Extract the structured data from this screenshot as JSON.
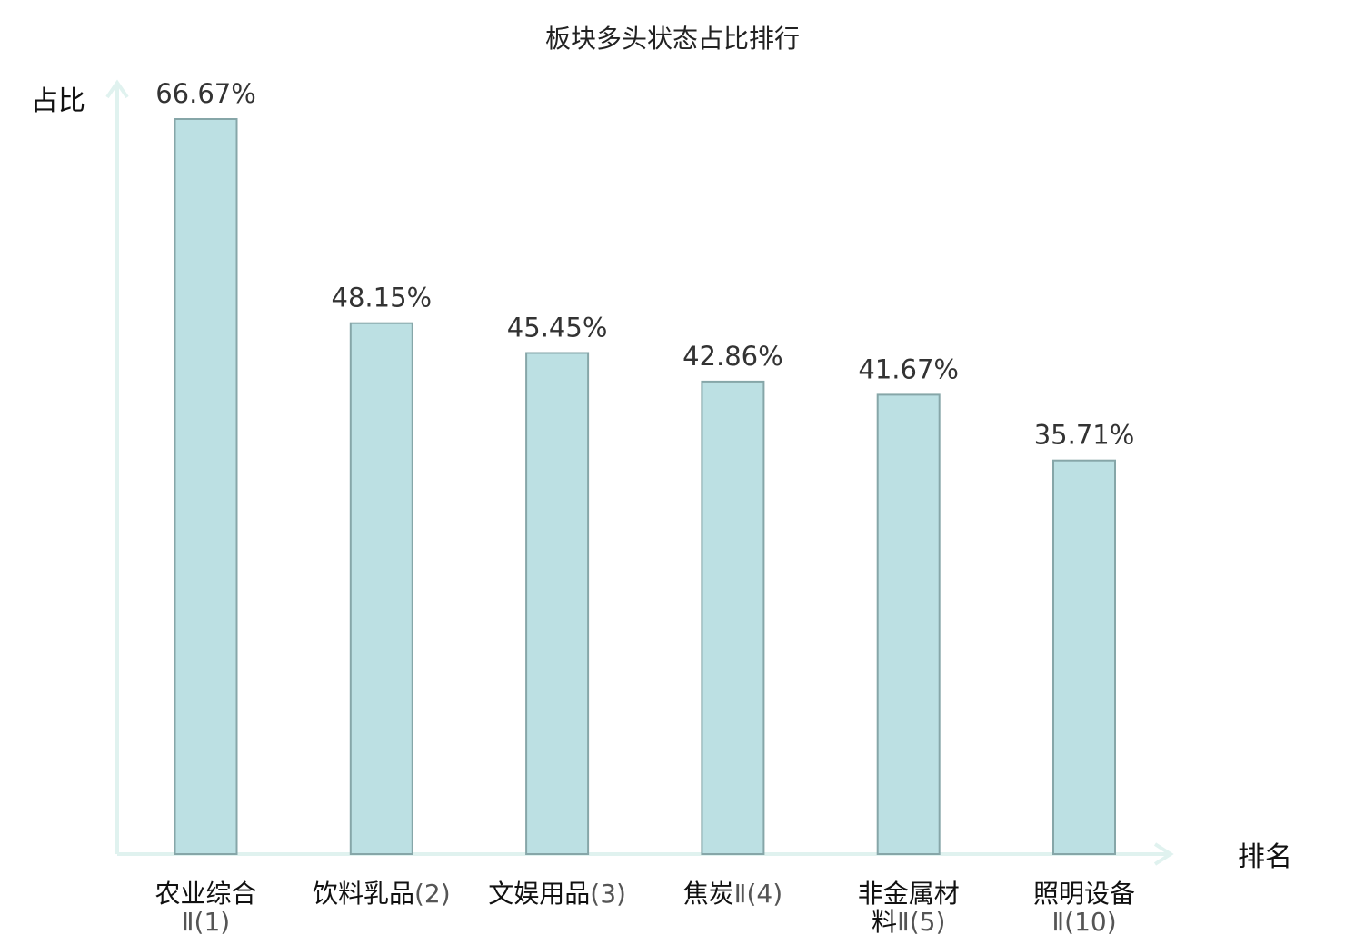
{
  "chart_data": {
    "type": "bar",
    "title": "板块多头状态占比排行",
    "ylabel": "占比",
    "xlabel": "排名",
    "categories": [
      {
        "lines": [
          {
            "main": "农业综合",
            "suffix": ""
          },
          {
            "main": "",
            "suffix": "Ⅱ(1)"
          }
        ],
        "highlight": false
      },
      {
        "lines": [
          {
            "main": "饮料乳品",
            "suffix": "(2)"
          }
        ],
        "highlight": false
      },
      {
        "lines": [
          {
            "main": "文娱用品",
            "suffix": "(3)"
          }
        ],
        "highlight": false
      },
      {
        "lines": [
          {
            "main": "焦炭",
            "suffix": "Ⅱ(4)"
          }
        ],
        "highlight": false
      },
      {
        "lines": [
          {
            "main": "非金属材",
            "suffix": ""
          },
          {
            "main": "料",
            "suffix": "Ⅱ(5)"
          }
        ],
        "highlight": false
      },
      {
        "lines": [
          {
            "main": "照明设备",
            "suffix": ""
          },
          {
            "main": "",
            "suffix": "Ⅱ(10)"
          }
        ],
        "highlight": true
      }
    ],
    "values": [
      66.67,
      48.15,
      45.45,
      42.86,
      41.67,
      35.71
    ],
    "value_labels": [
      "66.67%",
      "48.15%",
      "45.45%",
      "42.86%",
      "41.67%",
      "35.71%"
    ],
    "ylim": [
      0,
      66.67
    ],
    "grid": false,
    "colors": {
      "bar_fill": "#bce0e3",
      "bar_stroke": "#86a6a8",
      "axis": "#e0f2ef",
      "highlight": "#e01010"
    }
  }
}
